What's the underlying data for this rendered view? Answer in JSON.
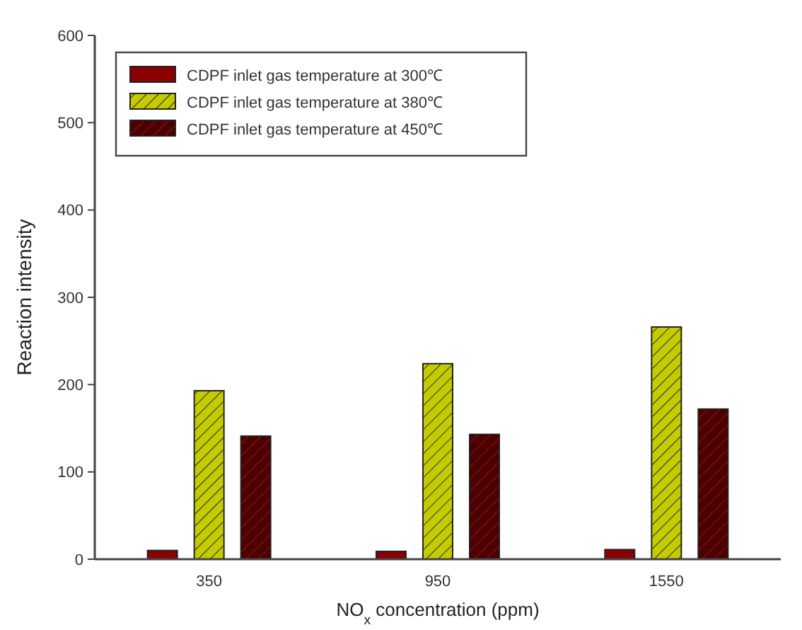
{
  "chart_data": {
    "type": "bar",
    "xlabel": "NO$_{x}$ concentration (ppm)",
    "ylabel": "Reaction intensity",
    "categories": [
      "350",
      "950",
      "1550"
    ],
    "series": [
      {
        "name": "CDPF inlet gas temperature at 300℃",
        "color": "#8b0000",
        "values": [
          10,
          9,
          11
        ]
      },
      {
        "name": "CDPF inlet gas temperature at 380℃",
        "color": "#c4cc00",
        "values": [
          193,
          224,
          266
        ]
      },
      {
        "name": "CDPF inlet gas temperature at 450℃",
        "color": "#4a0000",
        "values": [
          141,
          143,
          172
        ]
      }
    ],
    "ylim": [
      0,
      600
    ],
    "yticks": [
      0,
      100,
      200,
      300,
      400,
      500,
      600
    ],
    "legend": "top left"
  }
}
